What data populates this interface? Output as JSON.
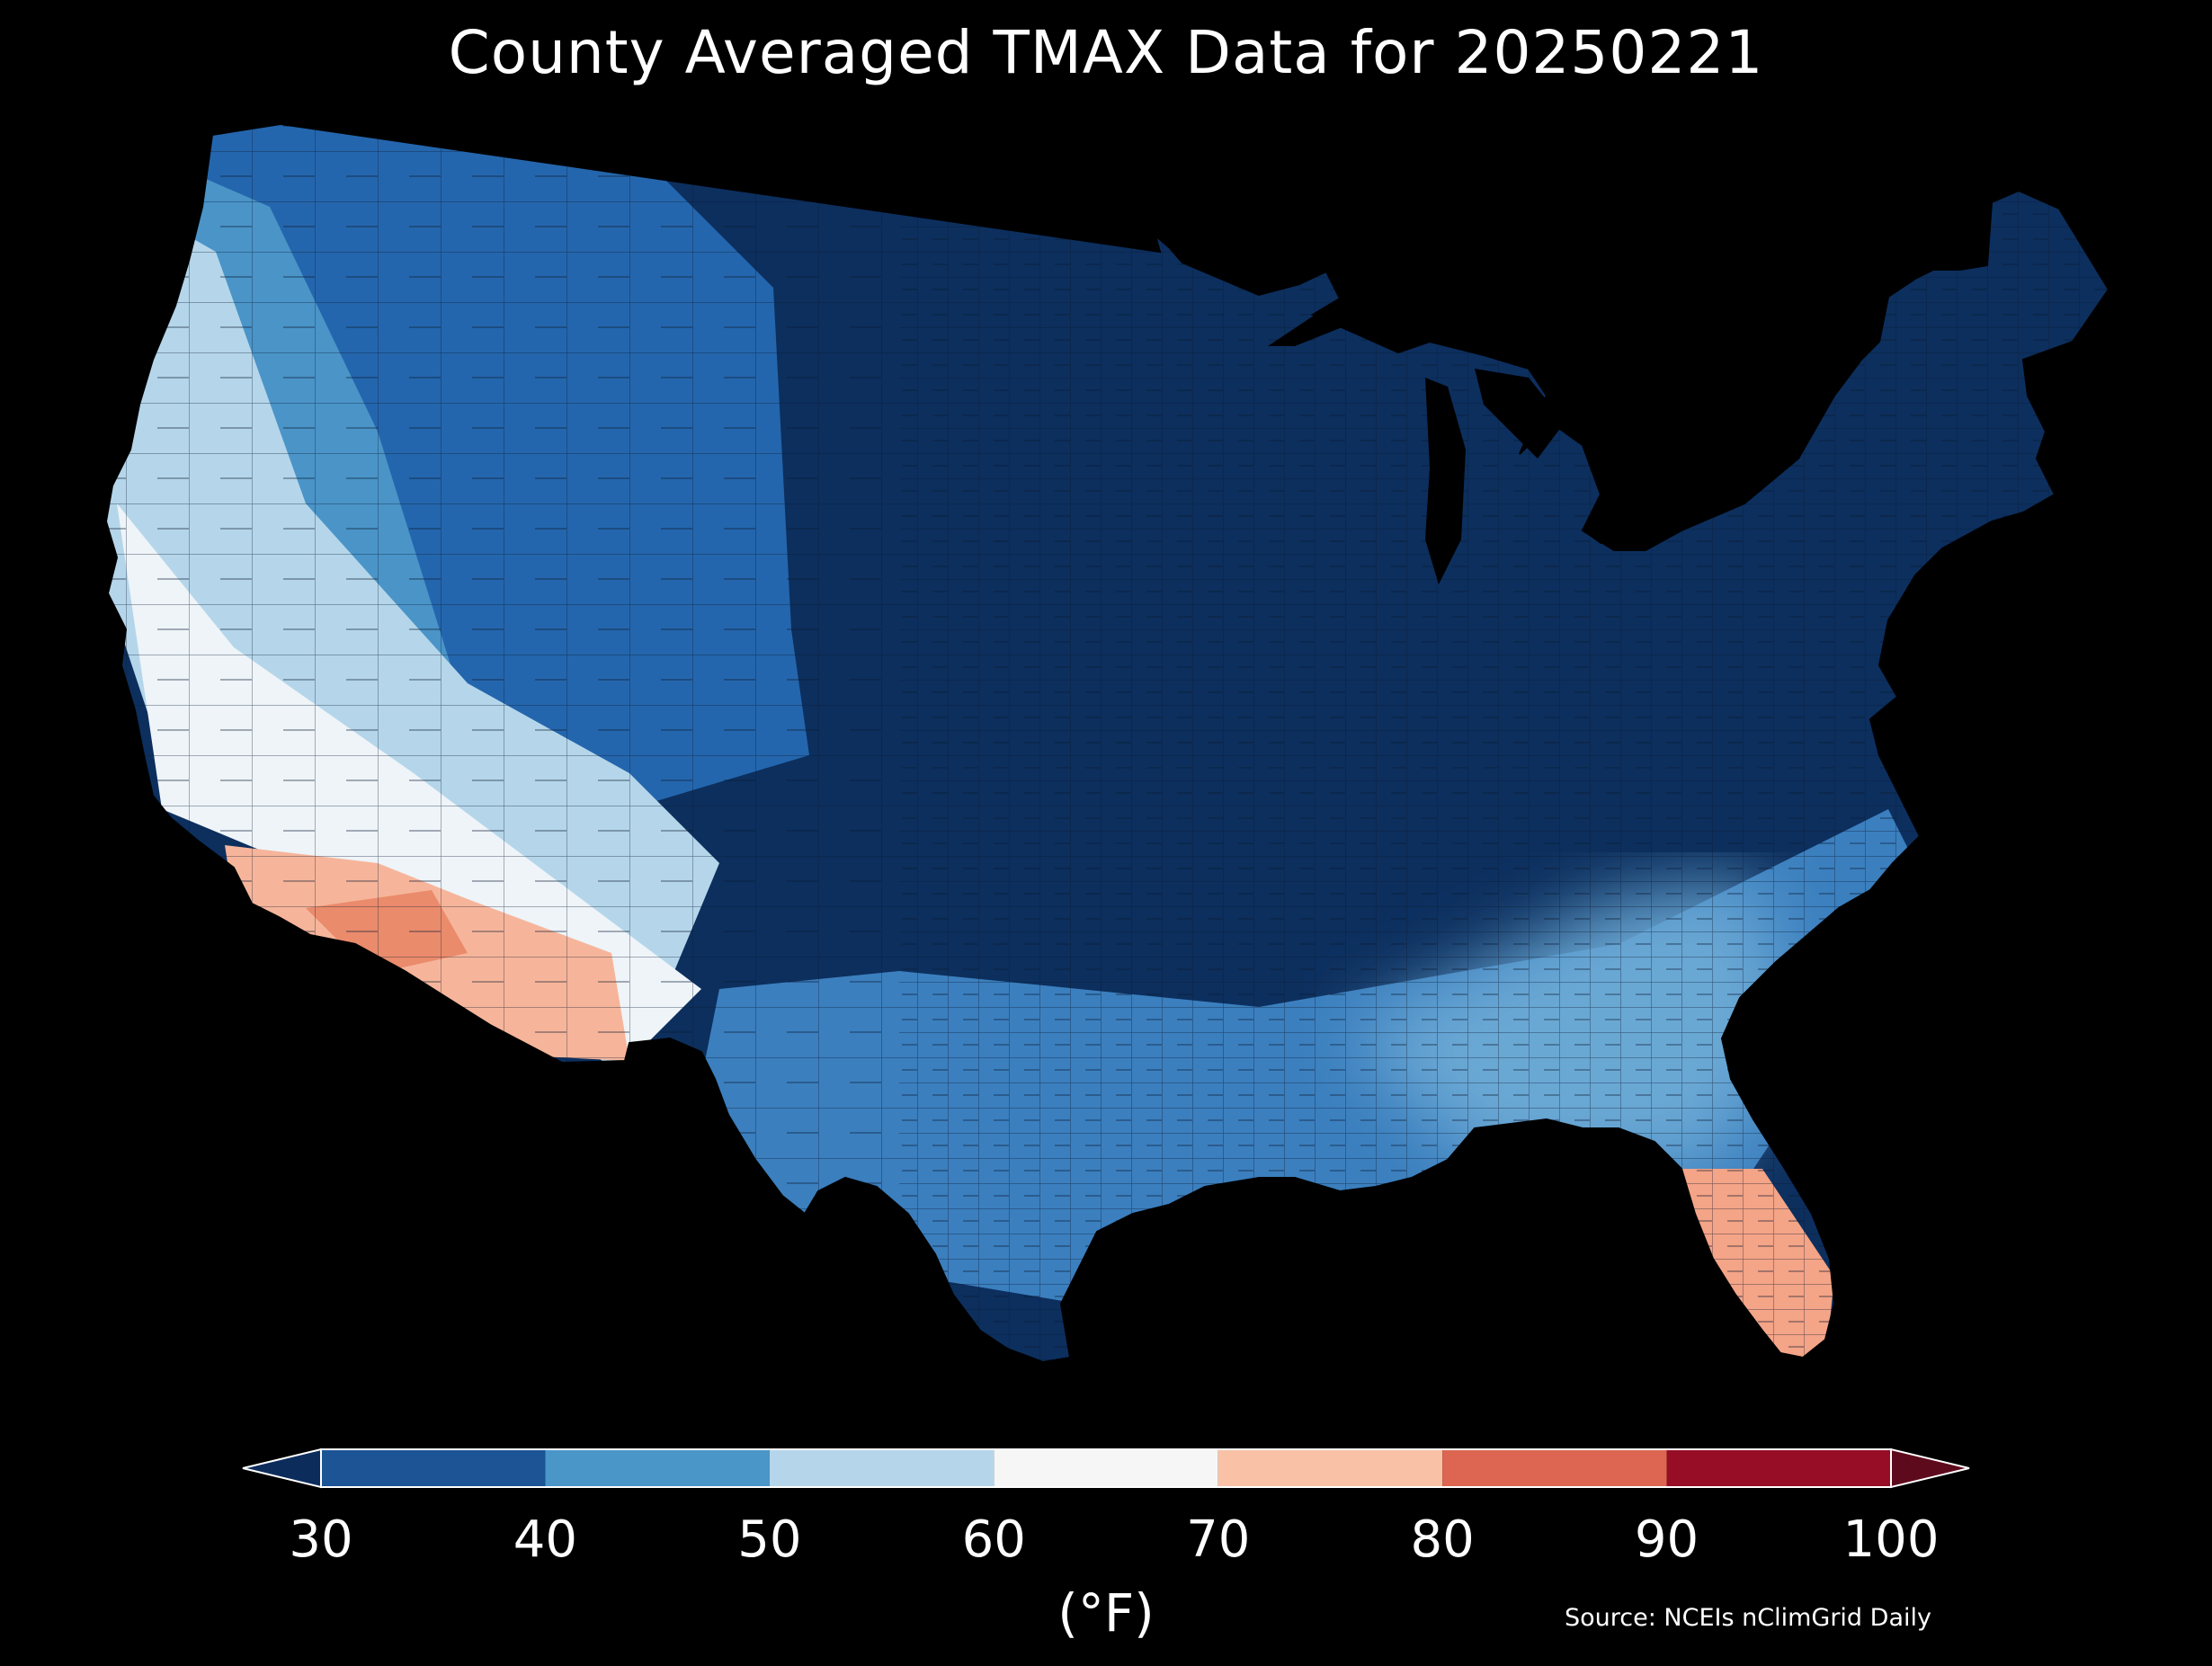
{
  "title": "County Averaged TMAX Data for 20250221",
  "source": "Source: NCEIs nClimGrid Daily",
  "colorbar": {
    "unit": "(°F)",
    "ticks": [
      "30",
      "40",
      "50",
      "60",
      "70",
      "80",
      "90",
      "100"
    ],
    "bins": [
      {
        "from": 30,
        "to": 40,
        "color": "#1c5496"
      },
      {
        "from": 40,
        "to": 50,
        "color": "#4a96c8"
      },
      {
        "from": 50,
        "to": 60,
        "color": "#b5d6ea"
      },
      {
        "from": 60,
        "to": 70,
        "color": "#f6f6f6"
      },
      {
        "from": 70,
        "to": 80,
        "color": "#f9c2a6"
      },
      {
        "from": 80,
        "to": 90,
        "color": "#dc6651"
      },
      {
        "from": 90,
        "to": 100,
        "color": "#970d26"
      }
    ],
    "under_color": "#0c2c5c",
    "over_color": "#5e0a1d"
  },
  "map_regions": {
    "cold_core": "#0c2f5e",
    "northwest_interior": "#2466ad",
    "great_basin": "#4a94c8",
    "pacific_coast": "#b5d6ea",
    "southwest_warm": "#f6b59a",
    "desert_hot": "#ea8b6c",
    "texas_gulf": "#3b7fbe",
    "southeast": "#6aa8d4",
    "florida_warm": "#f4a487"
  }
}
